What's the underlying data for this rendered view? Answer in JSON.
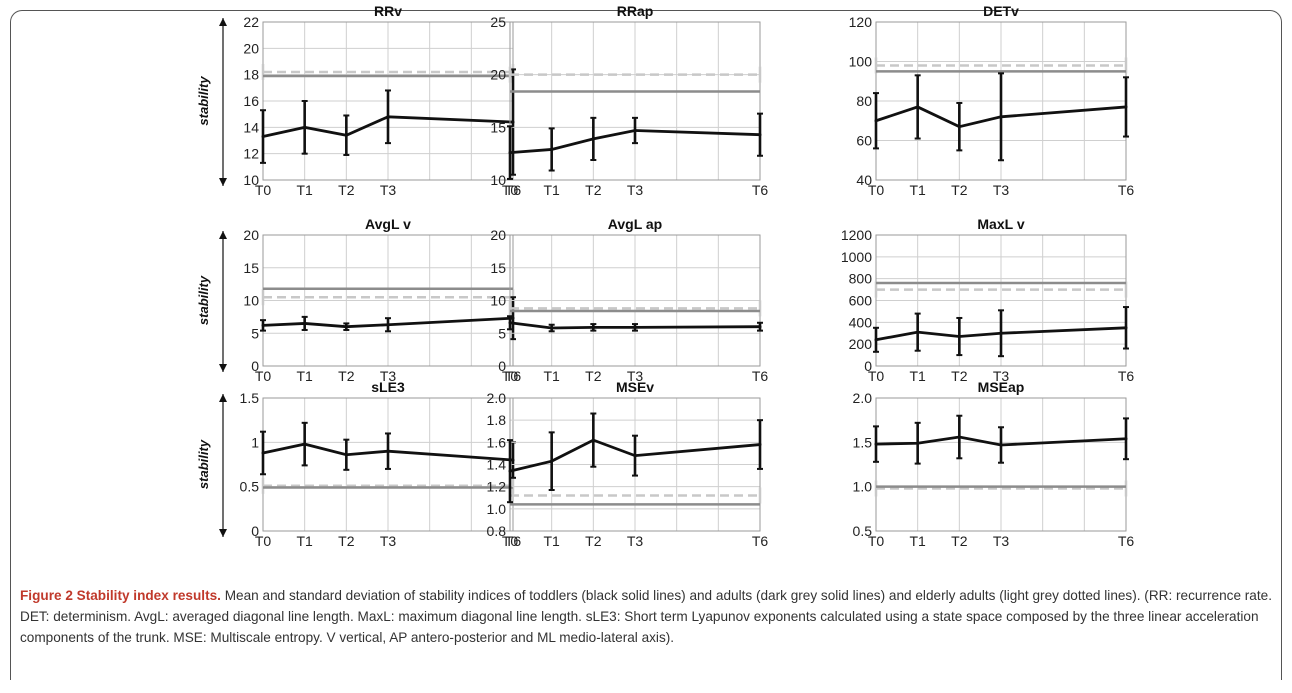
{
  "ylabel": "stability",
  "caption": {
    "heading": "Figure 2 Stability index results.",
    "text": "Mean and standard deviation of stability indices of toddlers (black solid lines) and adults (dark grey solid lines) and elderly adults (light grey dotted lines). (RR: recurrence rate. DET: determinism. AvgL: averaged diagonal line length. MaxL: maximum diagonal line length. sLE3: Short term Lyapunov exponents calculated using a state space composed by the three linear acceleration components of the trunk. MSE: Multiscale entropy. V vertical, AP antero-posterior and ML medio-lateral axis)."
  },
  "colors": {
    "toddlers": "#111111",
    "adults": "#8c8c8c",
    "elderly": "#c8c8c8"
  },
  "chart_data": [
    {
      "type": "line",
      "title": "RRv",
      "x": [
        "T0",
        "T1",
        "T2",
        "T3",
        "T6"
      ],
      "xpos": [
        0,
        1,
        2,
        3,
        6
      ],
      "ylim": [
        10,
        22
      ],
      "yticks": [
        "10",
        "12",
        "14",
        "16",
        "18",
        "20",
        "22"
      ],
      "series": [
        {
          "values": [
            13.3,
            14.0,
            13.4,
            14.8,
            14.4
          ],
          "err": [
            2.0,
            2.0,
            1.5,
            2.0,
            4.0
          ]
        }
      ],
      "adults": 17.9,
      "elderly": 18.2
    },
    {
      "type": "line",
      "title": "RRap",
      "x": [
        "T0",
        "T1",
        "T2",
        "T3",
        "T6"
      ],
      "xpos": [
        0,
        1,
        2,
        3,
        6
      ],
      "ylim": [
        10,
        25
      ],
      "yticks": [
        "10",
        "15",
        "20",
        "25"
      ],
      "series": [
        {
          "values": [
            12.6,
            12.9,
            13.9,
            14.7,
            14.3
          ],
          "err": [
            2.5,
            2.0,
            2.0,
            1.2,
            2.0
          ]
        }
      ],
      "adults": 18.4,
      "elderly": 20.0
    },
    {
      "type": "line",
      "title": "DETv",
      "x": [
        "T0",
        "T1",
        "T2",
        "T3",
        "T6"
      ],
      "xpos": [
        0,
        1,
        2,
        3,
        6
      ],
      "ylim": [
        40,
        120
      ],
      "yticks": [
        "40",
        "60",
        "80",
        "100",
        "120"
      ],
      "series": [
        {
          "values": [
            70,
            77,
            67,
            72,
            77
          ],
          "err": [
            14,
            16,
            12,
            22,
            15
          ]
        }
      ],
      "adults": 95,
      "elderly": 98
    },
    {
      "type": "line",
      "title": "AvgL v",
      "x": [
        "T0",
        "T1",
        "T2",
        "T3",
        "T6"
      ],
      "xpos": [
        0,
        1,
        2,
        3,
        6
      ],
      "ylim": [
        0,
        20
      ],
      "yticks": [
        "0",
        "5",
        "10",
        "15",
        "20"
      ],
      "series": [
        {
          "values": [
            6.2,
            6.5,
            6.0,
            6.3,
            7.3
          ],
          "err": [
            0.8,
            1.0,
            0.5,
            1.0,
            3.2
          ]
        }
      ],
      "adults": 11.8,
      "elderly": 10.5
    },
    {
      "type": "line",
      "title": "AvgL ap",
      "x": [
        "T0",
        "T1",
        "T2",
        "T3",
        "T6"
      ],
      "xpos": [
        0,
        1,
        2,
        3,
        6
      ],
      "ylim": [
        0,
        20
      ],
      "yticks": [
        "0",
        "5",
        "10",
        "15",
        "20"
      ],
      "series": [
        {
          "values": [
            6.6,
            5.8,
            5.9,
            5.9,
            6.0
          ],
          "err": [
            1.0,
            0.5,
            0.5,
            0.5,
            0.6
          ]
        }
      ],
      "adults": 8.4,
      "elderly": 8.8
    },
    {
      "type": "line",
      "title": "MaxL v",
      "x": [
        "T0",
        "T1",
        "T2",
        "T3",
        "T6"
      ],
      "xpos": [
        0,
        1,
        2,
        3,
        6
      ],
      "ylim": [
        0,
        1200
      ],
      "yticks": [
        "0",
        "200",
        "400",
        "600",
        "800",
        "1000",
        "1200"
      ],
      "series": [
        {
          "values": [
            240,
            310,
            270,
            300,
            350
          ],
          "err": [
            110,
            170,
            170,
            210,
            190
          ]
        }
      ],
      "adults": 760,
      "elderly": 700
    },
    {
      "type": "line",
      "title": "sLE3",
      "x": [
        "T0",
        "T1",
        "T2",
        "T3",
        "T6"
      ],
      "xpos": [
        0,
        1,
        2,
        3,
        6
      ],
      "ylim": [
        0,
        1.5
      ],
      "yticks": [
        "0",
        "0.5",
        "1",
        "1.5"
      ],
      "series": [
        {
          "values": [
            0.88,
            0.98,
            0.86,
            0.9,
            0.8
          ],
          "err": [
            0.24,
            0.24,
            0.17,
            0.2,
            0.2
          ]
        }
      ],
      "adults": 0.49,
      "elderly": 0.51
    },
    {
      "type": "line",
      "title": "MSEv",
      "x": [
        "T0",
        "T1",
        "T2",
        "T3",
        "T6"
      ],
      "xpos": [
        0,
        1,
        2,
        3,
        6
      ],
      "ylim": [
        0.8,
        2.0
      ],
      "yticks": [
        "0.8",
        "1.0",
        "1.2",
        "1.4",
        "1.6",
        "1.8",
        "2.0"
      ],
      "series": [
        {
          "values": [
            1.34,
            1.43,
            1.62,
            1.48,
            1.58
          ],
          "err": [
            0.28,
            0.26,
            0.24,
            0.18,
            0.22
          ]
        }
      ],
      "adults": 1.04,
      "elderly": 1.12
    },
    {
      "type": "line",
      "title": "MSEap",
      "x": [
        "T0",
        "T1",
        "T2",
        "T3",
        "T6"
      ],
      "xpos": [
        0,
        1,
        2,
        3,
        6
      ],
      "ylim": [
        0.5,
        2.0
      ],
      "yticks": [
        "0.5",
        "1.0",
        "1.5",
        "2.0"
      ],
      "series": [
        {
          "values": [
            1.48,
            1.49,
            1.56,
            1.47,
            1.54
          ],
          "err": [
            0.2,
            0.23,
            0.24,
            0.2,
            0.23
          ]
        }
      ],
      "adults": 1.0,
      "elderly": 0.98
    }
  ]
}
